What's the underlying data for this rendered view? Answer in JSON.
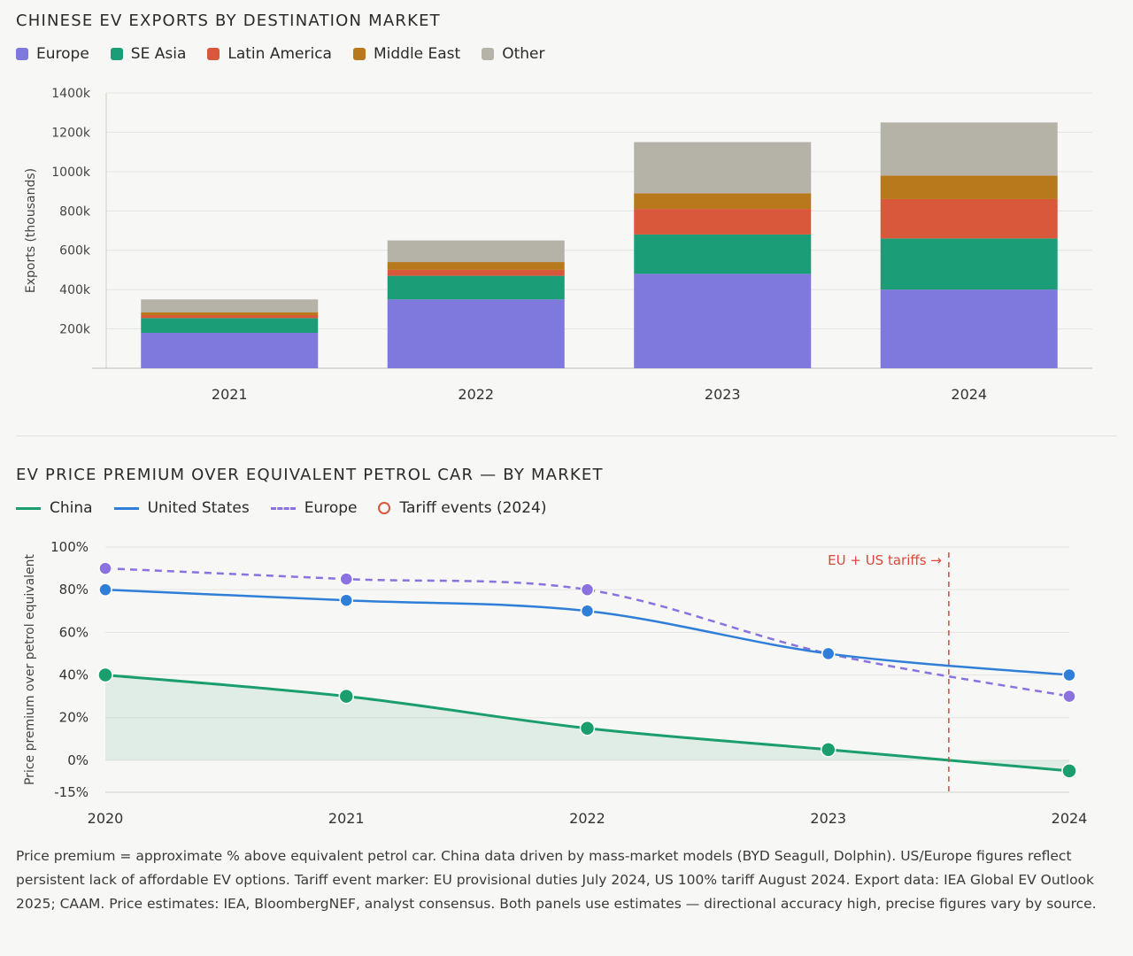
{
  "top_panel": {
    "title": "CHINESE EV EXPORTS BY DESTINATION MARKET",
    "legend": [
      {
        "label": "Europe",
        "color": "#7f79de"
      },
      {
        "label": "SE Asia",
        "color": "#1b9e77"
      },
      {
        "label": "Latin America",
        "color": "#d9583b"
      },
      {
        "label": "Middle East",
        "color": "#b8781c"
      },
      {
        "label": "Other",
        "color": "#b5b2a8"
      }
    ]
  },
  "bottom_panel": {
    "title": "EV PRICE PREMIUM OVER EQUIVALENT PETROL CAR — BY MARKET",
    "legend": [
      {
        "label": "China",
        "color": "#1a9e6e",
        "style": "solid"
      },
      {
        "label": "United States",
        "color": "#2f7fd8",
        "style": "solid"
      },
      {
        "label": "Europe",
        "color": "#8a72e0",
        "style": "dashed"
      },
      {
        "label": "Tariff events (2024)",
        "color": "#d9583b",
        "style": "ring"
      }
    ]
  },
  "chart_data": [
    {
      "type": "bar",
      "stacked": true,
      "title": "CHINESE EV EXPORTS BY DESTINATION MARKET",
      "categories": [
        "2021",
        "2022",
        "2023",
        "2024"
      ],
      "series": [
        {
          "name": "Europe",
          "color": "#7f79de",
          "values": [
            180,
            350,
            480,
            400
          ]
        },
        {
          "name": "SE Asia",
          "color": "#1b9e77",
          "values": [
            75,
            120,
            200,
            260
          ]
        },
        {
          "name": "Latin America",
          "color": "#d9583b",
          "values": [
            15,
            30,
            130,
            200
          ]
        },
        {
          "name": "Middle East",
          "color": "#b8781c",
          "values": [
            15,
            40,
            80,
            120
          ]
        },
        {
          "name": "Other",
          "color": "#b5b2a8",
          "values": [
            65,
            110,
            260,
            270
          ]
        }
      ],
      "ylabel": "Exports (thousands)",
      "ylim": [
        0,
        1400
      ],
      "yticks": [
        200,
        400,
        600,
        800,
        1000,
        1200,
        1400
      ],
      "ytick_labels": [
        "200k",
        "400k",
        "600k",
        "800k",
        "1000k",
        "1200k",
        "1400k"
      ],
      "grid": true,
      "legend_position": "top-left"
    },
    {
      "type": "line",
      "title": "EV PRICE PREMIUM OVER EQUIVALENT PETROL CAR — BY MARKET",
      "x": [
        2020,
        2021,
        2022,
        2023,
        2024
      ],
      "series": [
        {
          "name": "China",
          "color": "#1a9e6e",
          "style": "solid",
          "fill": true,
          "values": [
            40,
            30,
            15,
            5,
            -5
          ]
        },
        {
          "name": "United States",
          "color": "#2f7fd8",
          "style": "solid",
          "values": [
            80,
            75,
            70,
            50,
            40
          ]
        },
        {
          "name": "Europe",
          "color": "#8a72e0",
          "style": "dashed",
          "values": [
            90,
            85,
            80,
            50,
            30
          ]
        }
      ],
      "ylabel": "Price premium over petrol equivalent",
      "ylim": [
        -15,
        100
      ],
      "yticks": [
        -15,
        0,
        20,
        40,
        60,
        80,
        100
      ],
      "ytick_labels": [
        "-15%",
        "0%",
        "20%",
        "40%",
        "60%",
        "80%",
        "100%"
      ],
      "xlim": [
        2020,
        2024
      ],
      "xtick_labels": [
        "2020",
        "2021",
        "2022",
        "2023",
        "2024"
      ],
      "annotation": {
        "x": 2023.5,
        "label": "EU + US tariffs →",
        "color": "#d9483b"
      },
      "grid": true,
      "legend_position": "top-left"
    }
  ],
  "footnote": "Price premium = approximate % above equivalent petrol car. China data driven by mass-market models (BYD Seagull, Dolphin). US/Europe figures reflect persistent lack of affordable EV options. Tariff event marker: EU provisional duties July 2024, US 100% tariff August 2024. Export data: IEA Global EV Outlook 2025; CAAM. Price estimates: IEA, BloombergNEF, analyst consensus. Both panels use estimates — directional accuracy high, precise figures vary by source."
}
